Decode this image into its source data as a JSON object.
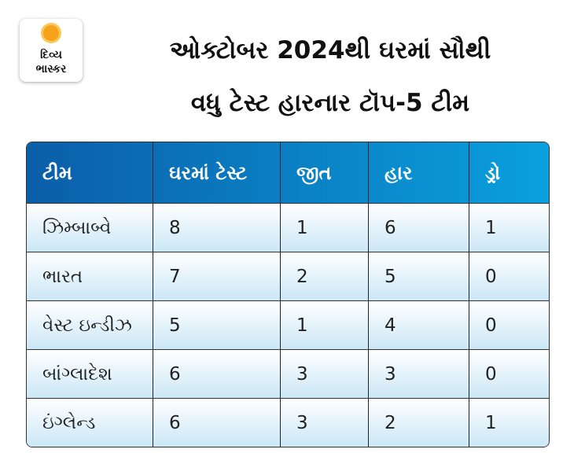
{
  "logo": {
    "line1": "દિવ્ય",
    "line2": "ભાસ્કર"
  },
  "title": {
    "line1": "ઓક્ટોબર 2024થી ઘરમાં સૌથી",
    "line2": "વધુ ટેસ્ટ હારનાર ટૉપ-5 ટીમ"
  },
  "table": {
    "headers": [
      "ટીમ",
      "ઘરમાં ટેસ્ટ",
      "જીત",
      "હાર",
      "ડ્રો"
    ],
    "rows": [
      [
        "ઝિમ્બાબ્વે",
        "8",
        "1",
        "6",
        "1"
      ],
      [
        "ભારત",
        "7",
        "2",
        "5",
        "0"
      ],
      [
        "વેસ્ટ ઇન્ડીઝ",
        "5",
        "1",
        "4",
        "0"
      ],
      [
        "બાંગ્લાદેશ",
        "6",
        "3",
        "3",
        "0"
      ],
      [
        "ઇંગ્લેન્ડ",
        "6",
        "3",
        "2",
        "1"
      ]
    ]
  },
  "colors": {
    "header_start": "#0b5ea8",
    "header_end": "#0aa0de",
    "logo_sun": "#f7a21b"
  }
}
